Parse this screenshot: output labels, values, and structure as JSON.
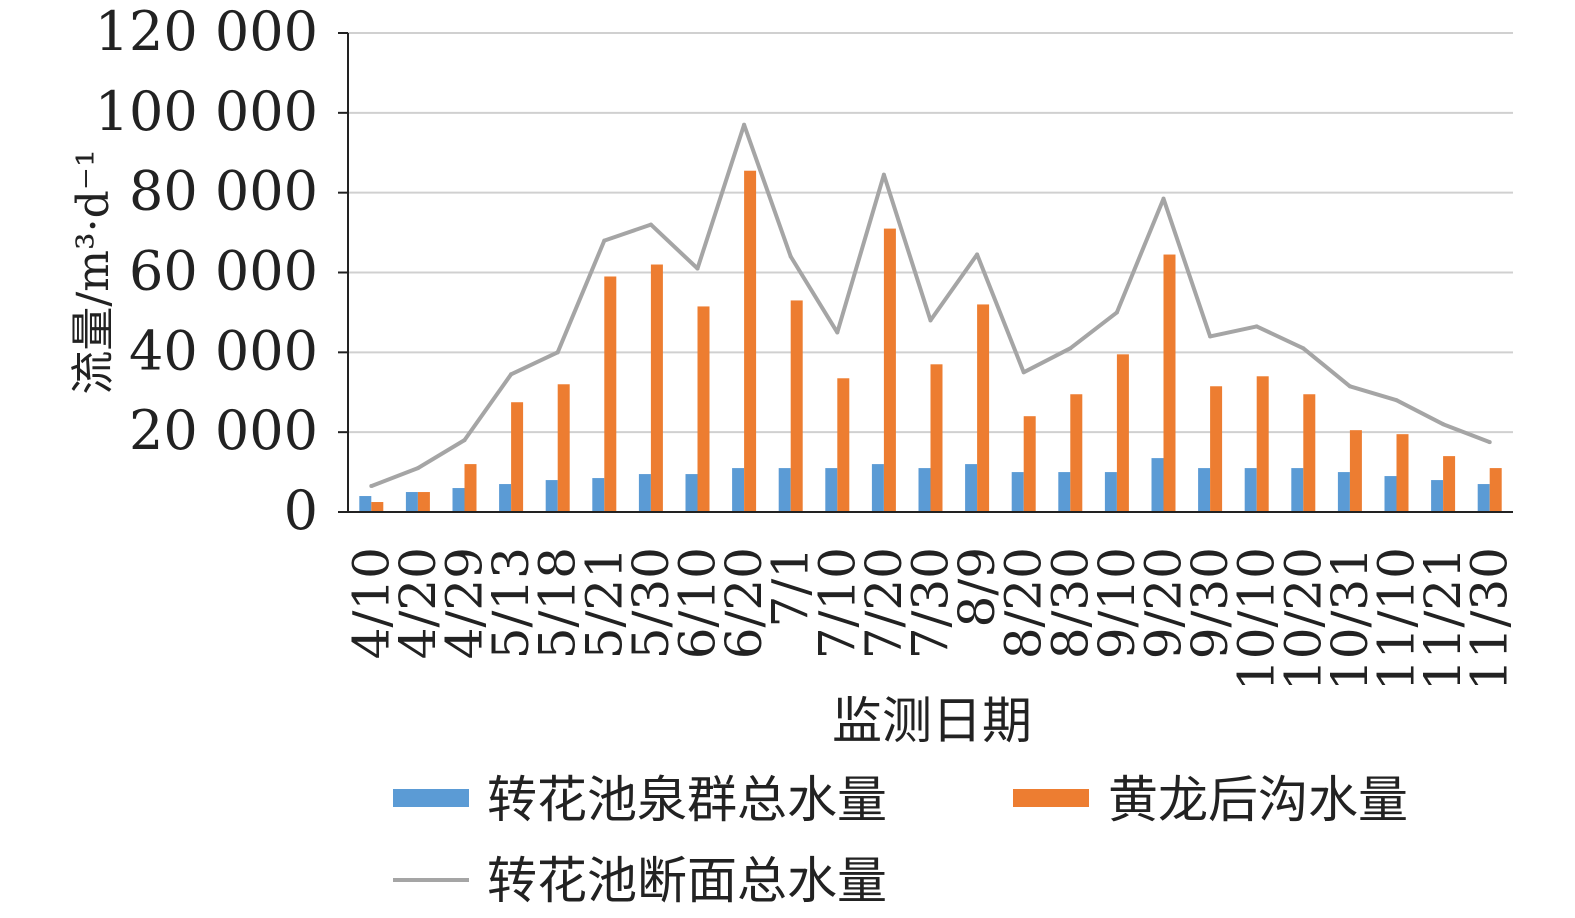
{
  "chart_data": {
    "type": "bar",
    "xlabel": "监测日期",
    "ylabel": "流量/m³·d⁻¹",
    "ylim": [
      0,
      120000
    ],
    "yticks": [
      0,
      20000,
      40000,
      60000,
      80000,
      100000,
      120000
    ],
    "ytick_labels": [
      "0",
      "20 000",
      "40 000",
      "60 000",
      "80 000",
      "100 000",
      "120 000"
    ],
    "grid": true,
    "legend_position": "bottom",
    "categories": [
      "4/10",
      "4/20",
      "4/29",
      "5/13",
      "5/18",
      "5/21",
      "5/30",
      "6/10",
      "6/20",
      "7/1",
      "7/10",
      "7/20",
      "7/30",
      "8/9",
      "8/20",
      "8/30",
      "9/10",
      "9/20",
      "9/30",
      "10/10",
      "10/20",
      "10/31",
      "11/10",
      "11/21",
      "11/30"
    ],
    "series": [
      {
        "name": "转花池泉群总水量",
        "type": "bar",
        "color": "#5b9bd5",
        "values": [
          4000,
          5000,
          6000,
          7000,
          8000,
          8500,
          9500,
          9500,
          11000,
          11000,
          11000,
          12000,
          11000,
          12000,
          10000,
          10000,
          10000,
          13500,
          11000,
          11000,
          11000,
          10000,
          9000,
          8000,
          7000
        ]
      },
      {
        "name": "黄龙后沟水量",
        "type": "bar",
        "color": "#ed7d31",
        "values": [
          2500,
          5000,
          12000,
          27500,
          32000,
          59000,
          62000,
          51500,
          85500,
          53000,
          33500,
          71000,
          37000,
          52000,
          24000,
          29500,
          39500,
          64500,
          31500,
          34000,
          29500,
          20500,
          19500,
          14000,
          11000
        ]
      },
      {
        "name": "转花池断面总水量",
        "type": "line",
        "color": "#a5a5a5",
        "values": [
          6500,
          11000,
          18000,
          34500,
          40000,
          68000,
          72000,
          61000,
          97000,
          64000,
          45000,
          84500,
          48000,
          64500,
          35000,
          41000,
          50000,
          78500,
          44000,
          46500,
          41000,
          31500,
          28000,
          22000,
          17500
        ]
      }
    ]
  }
}
